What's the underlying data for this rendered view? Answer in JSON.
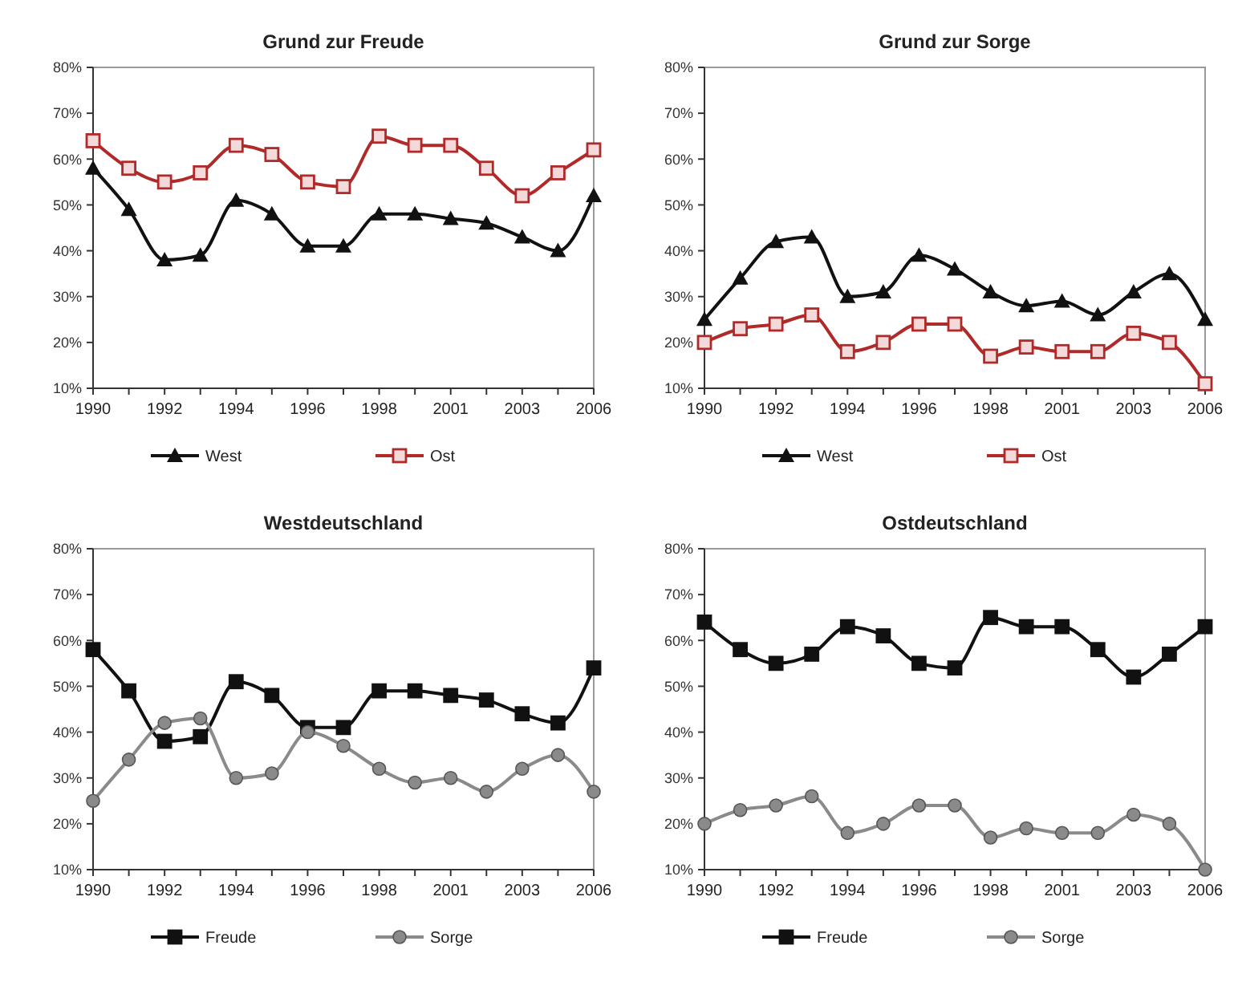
{
  "chart_data": [
    {
      "type": "line",
      "title": "Grund zur Freude",
      "categories": [
        "1990",
        null,
        "1992",
        null,
        "1994",
        null,
        "1996",
        null,
        "1998",
        null,
        "2001",
        null,
        "2003",
        null,
        "2006"
      ],
      "ylim": [
        10,
        80
      ],
      "yticks": [
        {
          "value": 10,
          "label": "10%"
        },
        {
          "value": 20,
          "label": "20%"
        },
        {
          "value": 30,
          "label": "30%"
        },
        {
          "value": 40,
          "label": "40%"
        },
        {
          "value": 50,
          "label": "50%"
        },
        {
          "value": 60,
          "label": "60%"
        },
        {
          "value": 70,
          "label": "70%"
        },
        {
          "value": 80,
          "label": "80%"
        }
      ],
      "legend": "bottom",
      "grid": false,
      "series": [
        {
          "name": "West",
          "color": "#111111",
          "marker": "triangle",
          "values": [
            58,
            49,
            38,
            39,
            51,
            48,
            41,
            41,
            48,
            48,
            47,
            46,
            43,
            40,
            52
          ]
        },
        {
          "name": "Ost",
          "color": "#b02a2a",
          "marker": "square",
          "values": [
            64,
            58,
            55,
            57,
            63,
            61,
            55,
            54,
            65,
            63,
            63,
            58,
            52,
            57,
            62
          ]
        }
      ]
    },
    {
      "type": "line",
      "title": "Grund zur Sorge",
      "categories": [
        "1990",
        null,
        "1992",
        null,
        "1994",
        null,
        "1996",
        null,
        "1998",
        null,
        "2001",
        null,
        "2003",
        null,
        "2006"
      ],
      "ylim": [
        10,
        80
      ],
      "yticks": [
        {
          "value": 10,
          "label": "10%"
        },
        {
          "value": 20,
          "label": "20%"
        },
        {
          "value": 30,
          "label": "30%"
        },
        {
          "value": 40,
          "label": "40%"
        },
        {
          "value": 50,
          "label": "50%"
        },
        {
          "value": 60,
          "label": "60%"
        },
        {
          "value": 70,
          "label": "70%"
        },
        {
          "value": 80,
          "label": "80%"
        }
      ],
      "legend": "bottom",
      "grid": false,
      "series": [
        {
          "name": "West",
          "color": "#111111",
          "marker": "triangle",
          "values": [
            25,
            34,
            42,
            43,
            30,
            31,
            39,
            36,
            31,
            28,
            29,
            26,
            31,
            35,
            25
          ]
        },
        {
          "name": "Ost",
          "color": "#b02a2a",
          "marker": "square",
          "values": [
            20,
            23,
            24,
            26,
            18,
            20,
            24,
            24,
            17,
            19,
            18,
            18,
            22,
            20,
            11
          ]
        }
      ]
    },
    {
      "type": "line",
      "title": "Westdeutschland",
      "categories": [
        "1990",
        null,
        "1992",
        null,
        "1994",
        null,
        "1996",
        null,
        "1998",
        null,
        "2001",
        null,
        "2003",
        null,
        "2006"
      ],
      "ylim": [
        10,
        80
      ],
      "yticks": [
        {
          "value": 10,
          "label": "10%"
        },
        {
          "value": 20,
          "label": "20%"
        },
        {
          "value": 30,
          "label": "30%"
        },
        {
          "value": 40,
          "label": "40%"
        },
        {
          "value": 50,
          "label": "50%"
        },
        {
          "value": 60,
          "label": "60%"
        },
        {
          "value": 70,
          "label": "70%"
        },
        {
          "value": 80,
          "label": "80%"
        }
      ],
      "legend": "bottom",
      "grid": false,
      "series": [
        {
          "name": "Freude",
          "color": "#111111",
          "marker": "square",
          "values": [
            58,
            49,
            38,
            39,
            51,
            48,
            41,
            41,
            49,
            49,
            48,
            47,
            44,
            42,
            54
          ]
        },
        {
          "name": "Sorge",
          "color": "#8a8a8a",
          "marker": "circle",
          "values": [
            25,
            34,
            42,
            43,
            30,
            31,
            40,
            37,
            32,
            29,
            30,
            27,
            32,
            35,
            27
          ]
        }
      ]
    },
    {
      "type": "line",
      "title": "Ostdeutschland",
      "categories": [
        "1990",
        null,
        "1992",
        null,
        "1994",
        null,
        "1996",
        null,
        "1998",
        null,
        "2001",
        null,
        "2003",
        null,
        "2006"
      ],
      "ylim": [
        10,
        80
      ],
      "yticks": [
        {
          "value": 10,
          "label": "10%"
        },
        {
          "value": 20,
          "label": "20%"
        },
        {
          "value": 30,
          "label": "30%"
        },
        {
          "value": 40,
          "label": "40%"
        },
        {
          "value": 50,
          "label": "50%"
        },
        {
          "value": 60,
          "label": "60%"
        },
        {
          "value": 70,
          "label": "70%"
        },
        {
          "value": 80,
          "label": "80%"
        }
      ],
      "legend": "bottom",
      "grid": false,
      "series": [
        {
          "name": "Freude",
          "color": "#111111",
          "marker": "square",
          "values": [
            64,
            58,
            55,
            57,
            63,
            61,
            55,
            54,
            65,
            63,
            63,
            58,
            52,
            57,
            63
          ]
        },
        {
          "name": "Sorge",
          "color": "#8a8a8a",
          "marker": "circle",
          "values": [
            20,
            23,
            24,
            26,
            18,
            20,
            24,
            24,
            17,
            19,
            18,
            18,
            22,
            20,
            10
          ]
        }
      ]
    }
  ]
}
